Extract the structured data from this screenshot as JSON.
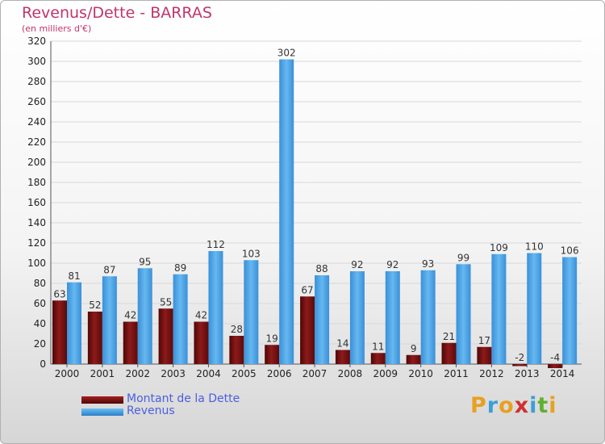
{
  "title": "Revenus/Dette - BARRAS",
  "subtitle": "(en milliers d'€)",
  "chart_data": {
    "type": "bar",
    "categories": [
      "2000",
      "2001",
      "2002",
      "2003",
      "2004",
      "2005",
      "2006",
      "2007",
      "2008",
      "2009",
      "2010",
      "2011",
      "2012",
      "2013",
      "2014"
    ],
    "series": [
      {
        "name": "Montant de la Dette",
        "values": [
          63,
          52,
          42,
          55,
          42,
          28,
          19,
          67,
          14,
          11,
          9,
          21,
          17,
          -2,
          -4
        ]
      },
      {
        "name": "Revenus",
        "values": [
          81,
          87,
          95,
          89,
          112,
          103,
          302,
          88,
          92,
          92,
          93,
          99,
          109,
          110,
          106
        ]
      }
    ],
    "ylim": [
      0,
      320
    ],
    "yticks": [
      0,
      20,
      40,
      60,
      80,
      100,
      120,
      140,
      160,
      180,
      200,
      220,
      240,
      260,
      280,
      300,
      320
    ],
    "grid": true,
    "legend_position": "bottom-left",
    "colors": {
      "dette": "#7a0f0f",
      "revenus": "#4aa3e6"
    }
  },
  "logo": {
    "letters": [
      "P",
      "r",
      "o",
      "x",
      "i",
      "t",
      "i"
    ],
    "colors": [
      "#e8a020",
      "#3aa0d8",
      "#e8a020",
      "#d03030",
      "#3aa0d8",
      "#60b030",
      "#e8a020"
    ]
  }
}
